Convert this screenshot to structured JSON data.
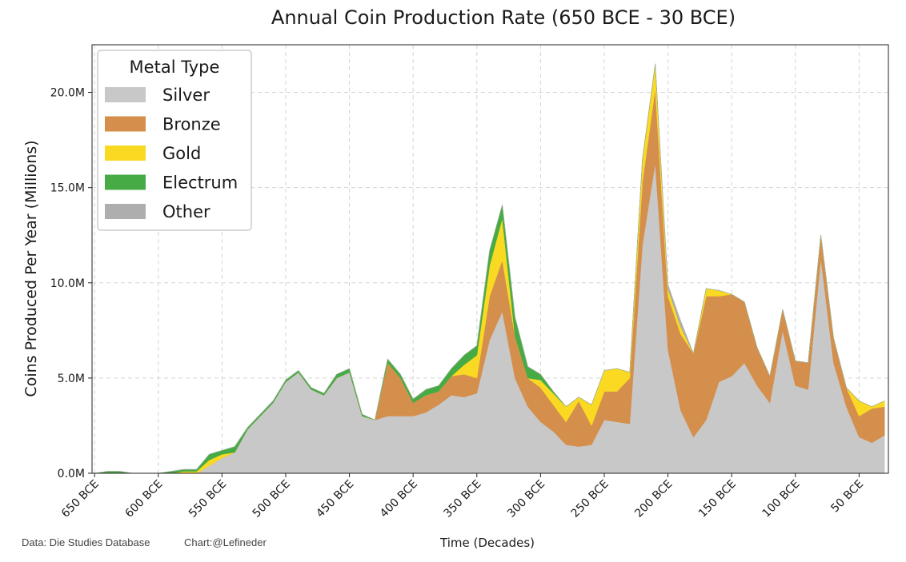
{
  "chart_data": {
    "type": "area",
    "stacked": true,
    "title": "Annual Coin Production Rate (650 BCE - 30 BCE)",
    "xlabel": "Time (Decades)",
    "ylabel": "Coins Produced Per Year (Millions)",
    "ylim": [
      0,
      22.5
    ],
    "yticks": [
      0,
      5,
      10,
      15,
      20
    ],
    "ytick_labels": [
      "0.0M",
      "5.0M",
      "10.0M",
      "15.0M",
      "20.0M"
    ],
    "xlim": [
      -652,
      -27
    ],
    "xticks": [
      -650,
      -600,
      -550,
      -500,
      -450,
      -400,
      -350,
      -300,
      -250,
      -200,
      -150,
      -100,
      -50
    ],
    "xtick_labels": [
      "650 BCE",
      "600 BCE",
      "550 BCE",
      "500 BCE",
      "450 BCE",
      "400 BCE",
      "350 BCE",
      "300 BCE",
      "250 BCE",
      "200 BCE",
      "150 BCE",
      "100 BCE",
      "50 BCE"
    ],
    "grid": true,
    "legend": {
      "title": "Metal Type",
      "position": "top-left"
    },
    "x": [
      -650,
      -640,
      -630,
      -620,
      -610,
      -600,
      -590,
      -580,
      -570,
      -560,
      -550,
      -540,
      -530,
      -520,
      -510,
      -500,
      -490,
      -480,
      -470,
      -460,
      -450,
      -440,
      -430,
      -420,
      -410,
      -400,
      -390,
      -380,
      -370,
      -360,
      -350,
      -340,
      -330,
      -320,
      -310,
      -300,
      -290,
      -280,
      -270,
      -260,
      -250,
      -240,
      -230,
      -220,
      -210,
      -200,
      -190,
      -180,
      -170,
      -160,
      -150,
      -140,
      -130,
      -120,
      -110,
      -100,
      -90,
      -80,
      -70,
      -60,
      -50,
      -40,
      -30
    ],
    "series": [
      {
        "name": "Silver",
        "color": "#c8c8c8",
        "values": [
          0,
          0,
          0,
          0,
          0,
          0,
          0,
          0,
          0,
          0.4,
          0.8,
          1.1,
          2.3,
          3.0,
          3.7,
          4.8,
          5.3,
          4.4,
          4.1,
          5.0,
          5.3,
          3.0,
          2.8,
          3.0,
          3.0,
          3.0,
          3.2,
          3.6,
          4.1,
          4.0,
          4.2,
          7.0,
          8.5,
          5.0,
          3.5,
          2.7,
          2.2,
          1.5,
          1.4,
          1.5,
          2.8,
          2.7,
          2.6,
          12.0,
          16.3,
          6.5,
          3.3,
          1.9,
          2.8,
          4.8,
          5.1,
          5.8,
          4.6,
          3.7,
          7.5,
          4.6,
          4.4,
          11.3,
          5.8,
          3.5,
          1.9,
          1.6,
          2.0
        ]
      },
      {
        "name": "Bronze",
        "color": "#d58f4c",
        "values": [
          0,
          0,
          0,
          0,
          0,
          0,
          0,
          0,
          0,
          0,
          0,
          0,
          0,
          0,
          0,
          0,
          0,
          0,
          0,
          0,
          0,
          0,
          0,
          2.8,
          2.0,
          0.7,
          0.9,
          0.7,
          1.0,
          1.2,
          0.8,
          2.3,
          2.7,
          2.2,
          1.5,
          1.8,
          1.4,
          1.2,
          2.4,
          1.0,
          1.5,
          1.6,
          2.4,
          3.3,
          3.9,
          2.8,
          4.0,
          4.4,
          6.5,
          4.5,
          4.3,
          3.2,
          2.0,
          1.4,
          1.1,
          1.3,
          1.4,
          1.2,
          1.3,
          1.0,
          1.1,
          1.8,
          1.5
        ]
      },
      {
        "name": "Gold",
        "color": "#fad923",
        "values": [
          0,
          0,
          0,
          0,
          0,
          0,
          0,
          0.1,
          0.1,
          0.3,
          0.2,
          0,
          0,
          0,
          0,
          0,
          0,
          0,
          0,
          0,
          0,
          0,
          0,
          0,
          0,
          0,
          0,
          0,
          0,
          0.5,
          1.2,
          1.6,
          2.2,
          0,
          0,
          0.4,
          0.6,
          0.8,
          0.2,
          1.1,
          1.1,
          1.2,
          0.3,
          1.2,
          1.3,
          0.4,
          0.4,
          0,
          0.4,
          0.3,
          0,
          0,
          0,
          0,
          0,
          0,
          0,
          0,
          0,
          0,
          0.8,
          0.1,
          0.3
        ]
      },
      {
        "name": "Electrum",
        "color": "#47ab45",
        "values": [
          0,
          0.1,
          0.1,
          0,
          0,
          0,
          0.1,
          0.1,
          0.1,
          0.3,
          0.2,
          0.3,
          0.1,
          0.1,
          0.1,
          0.1,
          0.1,
          0.1,
          0.1,
          0.2,
          0.2,
          0.1,
          0,
          0.2,
          0.2,
          0.2,
          0.3,
          0.3,
          0.4,
          0.5,
          0.5,
          0.8,
          0.7,
          1.0,
          0.6,
          0.3,
          0.1,
          0,
          0,
          0,
          0,
          0,
          0,
          0,
          0,
          0,
          0,
          0,
          0,
          0,
          0,
          0,
          0,
          0,
          0,
          0,
          0,
          0,
          0,
          0,
          0,
          0,
          0
        ]
      },
      {
        "name": "Other",
        "color": "#aeaeae",
        "values": [
          0,
          0,
          0,
          0,
          0,
          0,
          0,
          0,
          0,
          0,
          0,
          0,
          0,
          0,
          0,
          0,
          0,
          0,
          0,
          0,
          0,
          0,
          0,
          0,
          0,
          0,
          0,
          0,
          0,
          0,
          0,
          0,
          0,
          0,
          0,
          0,
          0,
          0,
          0,
          0,
          0,
          0,
          0,
          0,
          0,
          0.2,
          0.3,
          0,
          0,
          0,
          0,
          0,
          0,
          0,
          0,
          0,
          0,
          0,
          0,
          0,
          0,
          0,
          0
        ]
      }
    ]
  },
  "footer": {
    "source": "Data: Die Studies Database",
    "credit": "Chart:@Lefineder"
  }
}
